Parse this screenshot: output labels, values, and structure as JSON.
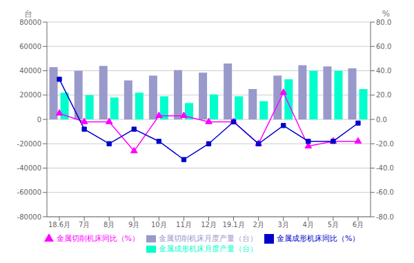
{
  "chart_data": {
    "type": "bar",
    "categories": [
      "18.6月",
      "7月",
      "8月",
      "9月",
      "10月",
      "11月",
      "12月",
      "19.1月",
      "2月",
      "3月",
      "4月",
      "5月",
      "6月"
    ],
    "series": [
      {
        "name": "金属切削机床月度产量（台）",
        "type": "bar",
        "color": "#9999CC",
        "values": [
          43000,
          40000,
          44000,
          32000,
          36000,
          40500,
          38500,
          46000,
          25000,
          36000,
          44500,
          43500,
          42000
        ]
      },
      {
        "name": "金属成形机床月度产量（台）",
        "type": "bar",
        "color": "#00FFCC",
        "values": [
          22000,
          20000,
          18000,
          22000,
          19000,
          13500,
          20500,
          19000,
          15000,
          33000,
          40000,
          40000,
          25000
        ]
      },
      {
        "name": "金属切削机床同比（%）",
        "type": "line",
        "axis": "y2",
        "color": "#FF00FF",
        "marker": "triangle",
        "values": [
          5,
          -2,
          -2,
          -26,
          3,
          3,
          -2,
          -2,
          -20,
          22,
          -22,
          -18,
          -18
        ]
      },
      {
        "name": "金属成形机床同比（%）",
        "type": "line",
        "axis": "y2",
        "color": "#0000CC",
        "marker": "square",
        "values": [
          33,
          -8,
          -20,
          -8,
          -18,
          -33,
          -20,
          -2,
          -20,
          -5,
          -18,
          -18,
          -3
        ]
      }
    ],
    "y_label": "台",
    "y2_label": "%",
    "ylim": [
      -80000,
      80000
    ],
    "yticks": [
      -80000,
      -60000,
      -40000,
      -20000,
      0,
      20000,
      40000,
      60000,
      80000
    ],
    "y2lim": [
      -80,
      80
    ],
    "y2ticks": [
      {
        "value": -80,
        "label": "-80.0"
      },
      {
        "value": -60,
        "label": "-60.0"
      },
      {
        "value": -40,
        "label": "-40.0"
      },
      {
        "value": -20,
        "label": "-20.0"
      },
      {
        "value": 0,
        "label": "0.0"
      },
      {
        "value": 20,
        "label": "20.0"
      },
      {
        "value": 40,
        "label": "40.0"
      },
      {
        "value": 60,
        "label": "60.0"
      },
      {
        "value": 80,
        "label": "80.0"
      }
    ],
    "grid": true,
    "legend": "bottom"
  }
}
